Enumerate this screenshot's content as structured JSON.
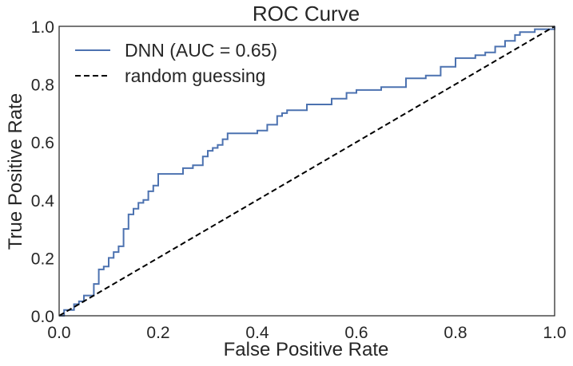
{
  "chart_data": {
    "type": "line",
    "title": "ROC Curve",
    "xlabel": "False Positive Rate",
    "ylabel": "True Positive Rate",
    "xlim": [
      0.0,
      1.0
    ],
    "ylim": [
      0.0,
      1.0
    ],
    "xticks": [
      "0.0",
      "0.2",
      "0.4",
      "0.6",
      "0.8",
      "1.0"
    ],
    "yticks": [
      "0.0",
      "0.2",
      "0.4",
      "0.6",
      "0.8",
      "1.0"
    ],
    "grid": false,
    "legend_position": "top-left",
    "series": [
      {
        "name": "DNN (AUC = 0.65)",
        "color": "#4c72b0",
        "style": "solid",
        "x": [
          0.0,
          0.01,
          0.02,
          0.03,
          0.04,
          0.05,
          0.06,
          0.07,
          0.08,
          0.09,
          0.1,
          0.11,
          0.12,
          0.13,
          0.14,
          0.15,
          0.16,
          0.17,
          0.18,
          0.19,
          0.2,
          0.21,
          0.25,
          0.27,
          0.29,
          0.3,
          0.31,
          0.32,
          0.33,
          0.34,
          0.35,
          0.38,
          0.4,
          0.42,
          0.44,
          0.45,
          0.46,
          0.5,
          0.55,
          0.58,
          0.6,
          0.65,
          0.7,
          0.74,
          0.77,
          0.8,
          0.84,
          0.86,
          0.88,
          0.9,
          0.92,
          0.93,
          0.96,
          1.0
        ],
        "y": [
          0.0,
          0.02,
          0.02,
          0.04,
          0.05,
          0.07,
          0.07,
          0.11,
          0.16,
          0.17,
          0.2,
          0.22,
          0.24,
          0.3,
          0.35,
          0.37,
          0.39,
          0.4,
          0.43,
          0.45,
          0.49,
          0.49,
          0.51,
          0.52,
          0.55,
          0.57,
          0.58,
          0.59,
          0.61,
          0.63,
          0.63,
          0.63,
          0.64,
          0.66,
          0.69,
          0.7,
          0.71,
          0.73,
          0.75,
          0.77,
          0.78,
          0.79,
          0.82,
          0.83,
          0.86,
          0.89,
          0.9,
          0.91,
          0.93,
          0.95,
          0.97,
          0.98,
          0.99,
          1.0
        ]
      },
      {
        "name": "random guessing",
        "color": "#000000",
        "style": "dashed",
        "x": [
          0.0,
          1.0
        ],
        "y": [
          0.0,
          1.0
        ]
      }
    ]
  }
}
